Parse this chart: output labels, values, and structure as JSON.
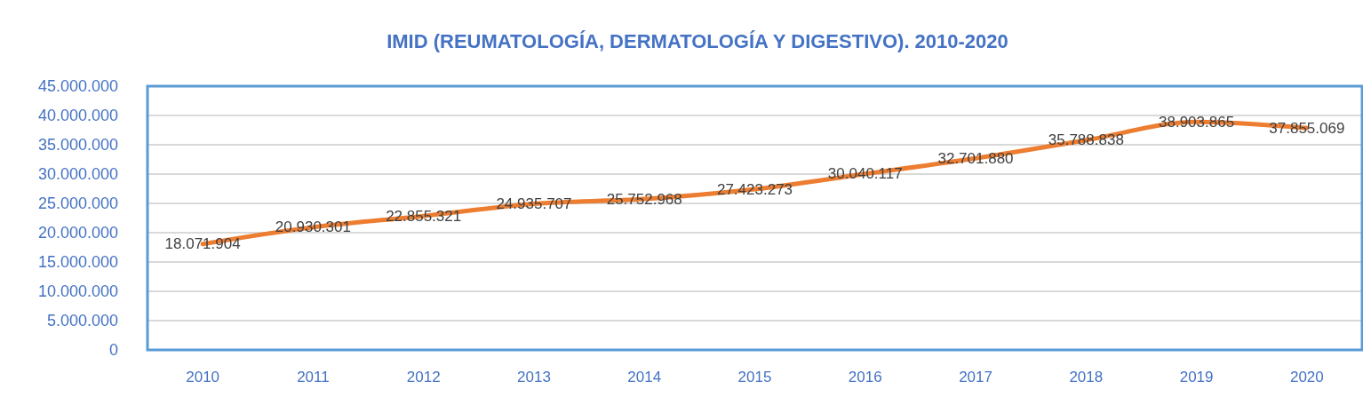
{
  "chart_data": {
    "type": "line",
    "title": "IMID (REUMATOLOGÍA, DERMATOLOGÍA Y DIGESTIVO). 2010-2020",
    "categories": [
      "2010",
      "2011",
      "2012",
      "2013",
      "2014",
      "2015",
      "2016",
      "2017",
      "2018",
      "2019",
      "2020"
    ],
    "series": [
      {
        "color": "#ed7d31",
        "values": [
          18071904,
          20930301,
          22855321,
          24935707,
          25752968,
          27423273,
          30040117,
          32701880,
          35788838,
          38903865,
          37855069
        ],
        "value_labels": [
          "18.071.904",
          "20.930.301",
          "22.855.321",
          "24.935.707",
          "25.752.968",
          "27.423.273",
          "30.040.117",
          "32.701.880",
          "35.788.838",
          "38.903.865",
          "37.855.069"
        ]
      }
    ],
    "ylim": [
      0,
      45000000
    ],
    "yticks": [
      0,
      {
        "value": 5000000,
        "label": "5.000.000"
      },
      {
        "value": 10000000,
        "label": "10.000.000"
      },
      {
        "value": 15000000,
        "label": "15.000.000"
      },
      {
        "value": 20000000,
        "label": "20.000.000"
      },
      {
        "value": 25000000,
        "label": "25.000.000"
      },
      {
        "value": 30000000,
        "label": "30.000.000"
      },
      {
        "value": 35000000,
        "label": "35.000.000"
      },
      {
        "value": 40000000,
        "label": "40.000.000"
      },
      {
        "value": 45000000,
        "label": "45.000.000"
      }
    ],
    "grid": "y"
  }
}
